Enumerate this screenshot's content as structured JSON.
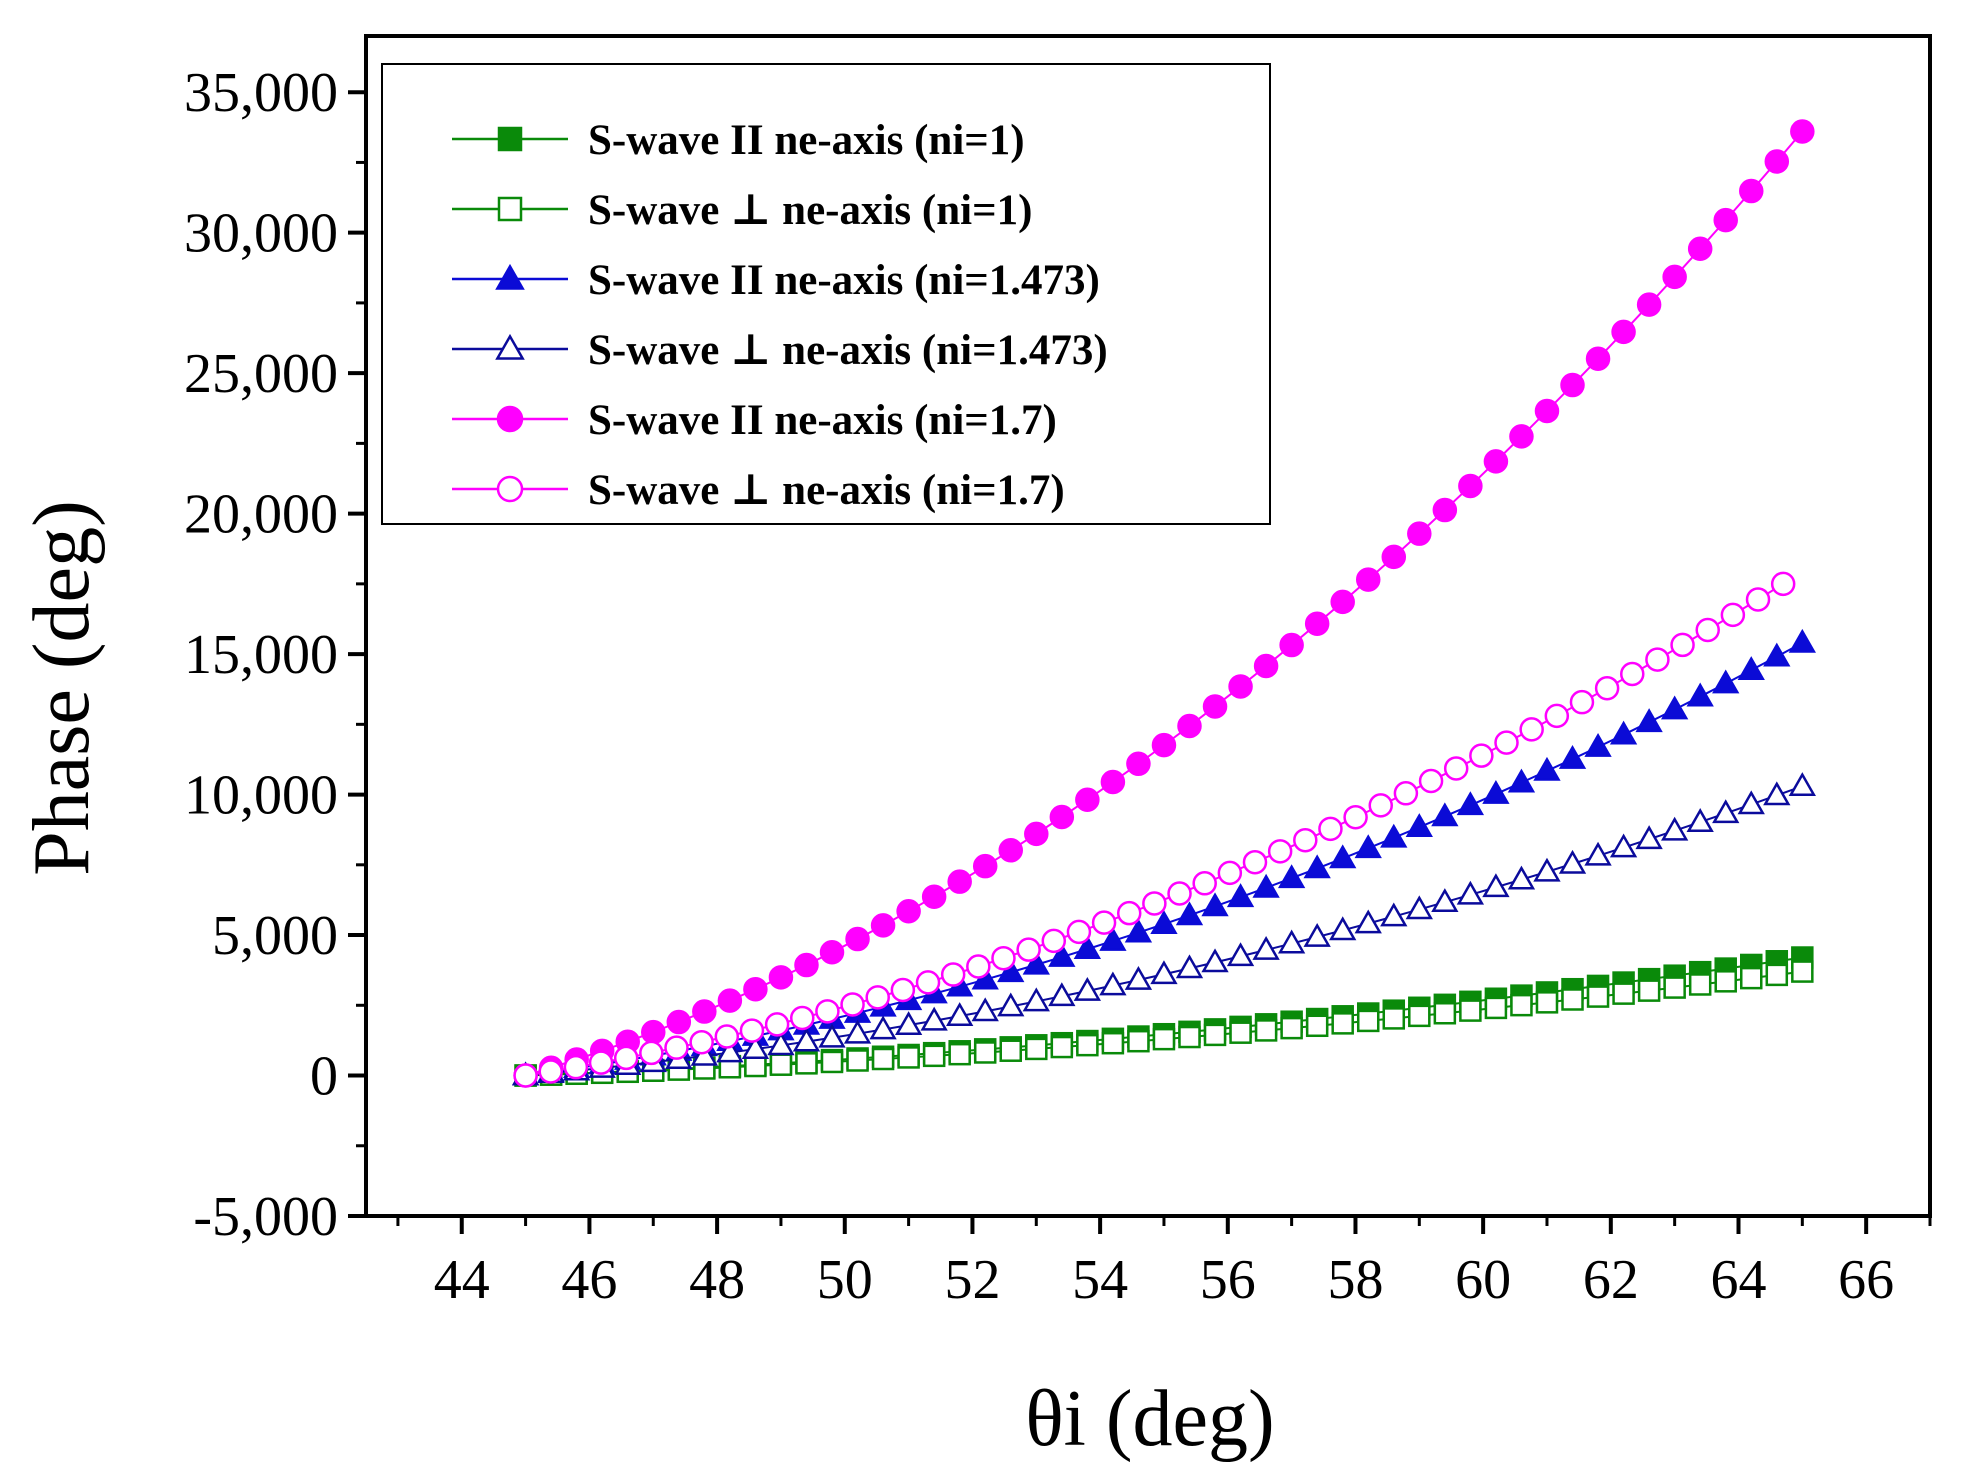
{
  "chart_data": {
    "type": "scatter",
    "title": "",
    "xlabel": "θi (deg)",
    "ylabel": "Phase (deg)",
    "xlim": [
      42.5,
      67.0
    ],
    "ylim": [
      -5000,
      37000
    ],
    "xticks": [
      44,
      46,
      48,
      50,
      52,
      54,
      56,
      58,
      60,
      62,
      64,
      66
    ],
    "xtick_labels": [
      "44",
      "46",
      "48",
      "50",
      "52",
      "54",
      "56",
      "58",
      "60",
      "62",
      "64",
      "66"
    ],
    "yticks": [
      -5000,
      0,
      5000,
      10000,
      15000,
      20000,
      25000,
      30000,
      35000
    ],
    "ytick_labels": [
      "-5,000",
      "0",
      "5,000",
      "10,000",
      "15,000",
      "20,000",
      "25,000",
      "30,000",
      "35,000"
    ],
    "legend_position": "top-left",
    "grid": false,
    "series": [
      {
        "name": "S-wave II ne-axis (ni=1)",
        "marker": "square",
        "filled": true,
        "color": "#0a8a0a",
        "x_start": 45,
        "x_end": 65,
        "n_points": 51,
        "y_start": 0,
        "y_end": 4200
      },
      {
        "name": "S-wave ⊥ ne-axis (ni=1)",
        "marker": "square",
        "filled": false,
        "color": "#0a8a0a",
        "x_start": 45,
        "x_end": 65,
        "n_points": 51,
        "y_start": 0,
        "y_end": 3700
      },
      {
        "name": "S-wave II ne-axis (ni=1.473)",
        "marker": "triangle",
        "filled": true,
        "color": "#0b0bd6",
        "x_start": 45,
        "x_end": 65,
        "n_points": 51,
        "y_start": 0,
        "y_end": 15400
      },
      {
        "name": "S-wave ⊥ ne-axis (ni=1.473)",
        "marker": "triangle",
        "filled": false,
        "color": "#0b0b9c",
        "x_start": 45,
        "x_end": 65,
        "n_points": 51,
        "y_start": 0,
        "y_end": 10300
      },
      {
        "name": "S-wave II ne-axis (ni=1.7)",
        "marker": "circle",
        "filled": true,
        "color": "#ff00ff",
        "x_start": 45,
        "x_end": 65,
        "n_points": 51,
        "y_start": 0,
        "y_end": 33600
      },
      {
        "name": "S-wave ⊥ ne-axis (ni=1.7)",
        "marker": "circle",
        "filled": false,
        "color": "#ff00ff",
        "x_start": 45,
        "x_end": 64.7,
        "n_points": 51,
        "y_start": 0,
        "y_end": 17500
      }
    ]
  }
}
